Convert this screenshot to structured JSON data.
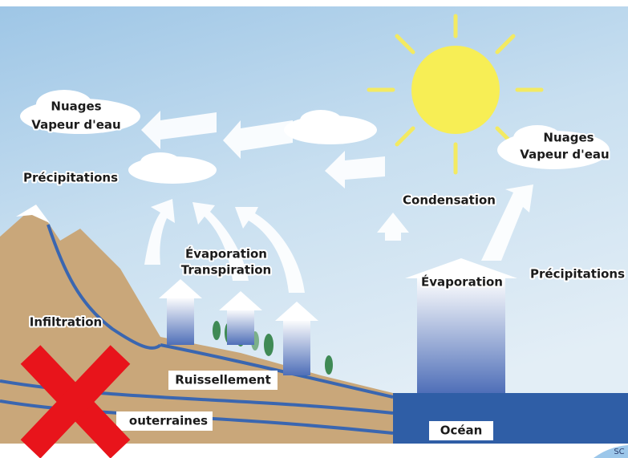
{
  "left": {
    "cloud_title": "Nuages",
    "cloud_subtitle": "Vapeur d'eau",
    "precipitation": "Précipitations",
    "evaporation": "Évaporation",
    "transpiration": "Transpiration",
    "infiltration": "Infiltration",
    "runoff": "Ruissellement",
    "groundwater": "outerraines"
  },
  "right": {
    "condensation": "Condensation",
    "cloud_title": "Nuages",
    "cloud_subtitle": "Vapeur d'eau",
    "precipitation": "Précipitations",
    "evaporation": "Évaporation",
    "ocean": "Océan"
  },
  "corner_text": "SC"
}
